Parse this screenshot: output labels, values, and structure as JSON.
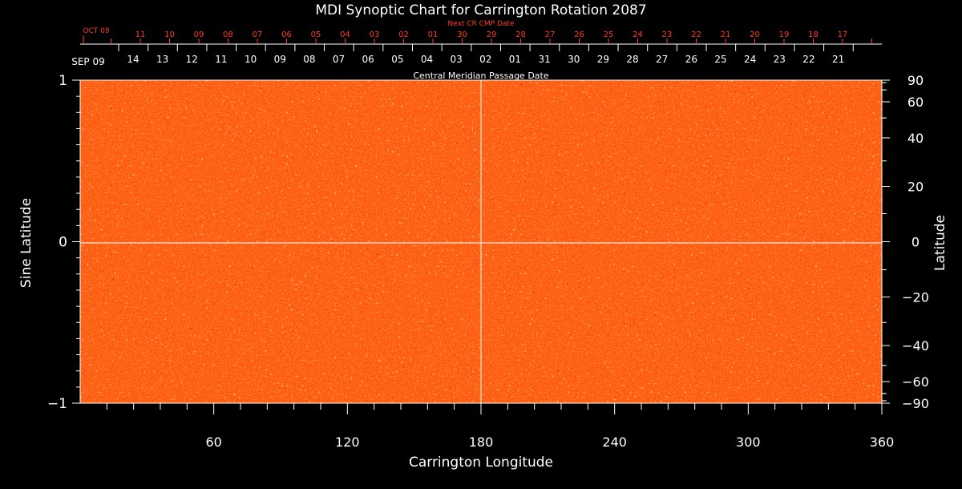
{
  "chart_data": {
    "type": "heatmap",
    "title": "MDI Synoptic Chart for Carrington Rotation 2087",
    "xlabel": "Carrington Longitude",
    "ylabel_left": "Sine Latitude",
    "ylabel_right": "Latitude",
    "xlim": [
      0,
      360
    ],
    "ylim": [
      -1,
      1
    ],
    "x_ticks": [
      "60",
      "120",
      "180",
      "240",
      "300",
      "360"
    ],
    "x_tick_values": [
      60,
      120,
      180,
      240,
      300,
      360
    ],
    "y_left_ticks": [
      "1",
      "0",
      "−1"
    ],
    "y_left_tick_values": [
      1,
      0,
      -1
    ],
    "y_right_ticks": [
      "90",
      "60",
      "40",
      "20",
      "0",
      "−20",
      "−40",
      "−60",
      "−90"
    ],
    "y_right_tick_values": [
      90,
      60,
      40,
      20,
      0,
      -20,
      -40,
      -60,
      -90
    ],
    "top_axis_next": {
      "label": "Next CR CMP Date",
      "month_label": "OCT 09",
      "dates": [
        "11",
        "10",
        "09",
        "08",
        "07",
        "06",
        "05",
        "04",
        "03",
        "02",
        "01",
        "30",
        "29",
        "28",
        "27",
        "26",
        "25",
        "24",
        "23",
        "22",
        "21",
        "20",
        "19",
        "18",
        "17"
      ],
      "color": "#ff3b1f"
    },
    "top_axis_cmp": {
      "label": "Central Meridian Passage Date",
      "month_label": "SEP 09",
      "dates": [
        "14",
        "13",
        "12",
        "11",
        "10",
        "09",
        "08",
        "07",
        "06",
        "05",
        "04",
        "03",
        "02",
        "01",
        "31",
        "30",
        "29",
        "28",
        "27",
        "26",
        "25",
        "24",
        "23",
        "22",
        "21"
      ]
    },
    "colors": {
      "background": "#000000",
      "axis": "#ffffff",
      "map_base": "#ff5a10",
      "map_dark": "#5a0000",
      "map_light": "#ffe070"
    },
    "grid": "equator and central meridian lines"
  }
}
